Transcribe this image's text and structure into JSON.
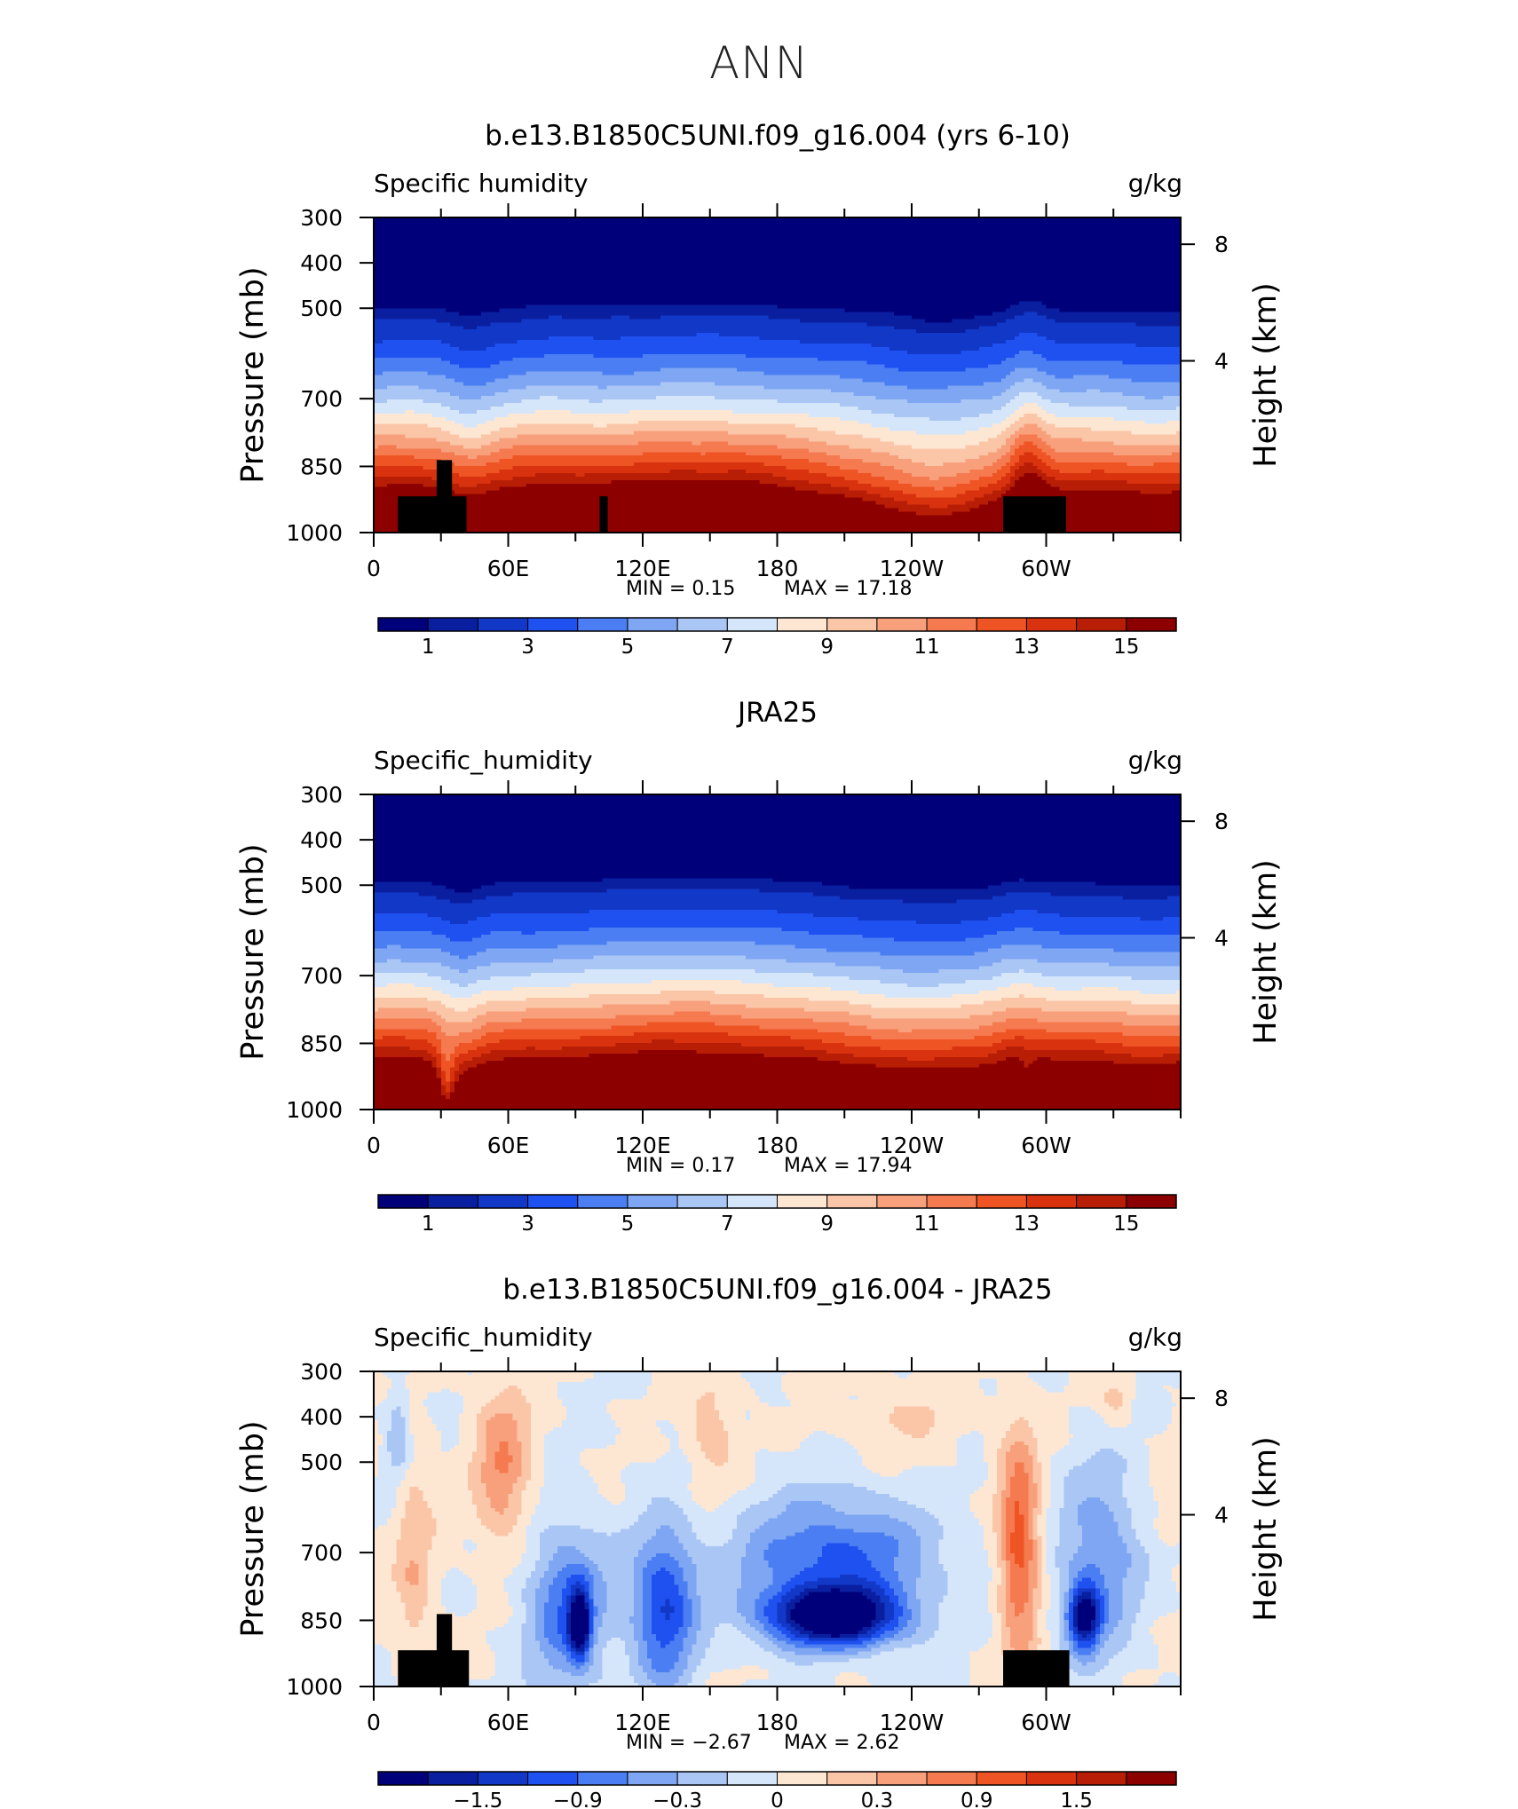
{
  "page_title": "ANN",
  "chart_data": [
    {
      "type": "heatmap",
      "title": "b.e13.B1850C5UNI.f09_g16.004 (yrs 6-10)",
      "variable": "Specific humidity",
      "units": "g/kg",
      "ylabel": "Pressure (mb)",
      "ylabel_right": "Height (km)",
      "y_ticks": [
        "300",
        "400",
        "500",
        "700",
        "850",
        "1000"
      ],
      "y_right_ticks": [
        "8",
        "4"
      ],
      "x_ticks": [
        "0",
        "60E",
        "120E",
        "180",
        "120W",
        "60W"
      ],
      "min_text": "MIN =    0.15",
      "max_text": "MAX =    17.18",
      "colorbar_labels": [
        "1",
        "3",
        "5",
        "7",
        "9",
        "11",
        "13",
        "15"
      ],
      "colorbar_colors": [
        "#00007a",
        "#0a1fa0",
        "#1238c8",
        "#1f50f0",
        "#4a7ef2",
        "#7ea6f2",
        "#aac6f5",
        "#d6e6fa",
        "#fde7d3",
        "#fbc6a8",
        "#f8a07c",
        "#f57a50",
        "#ee5424",
        "#d8330e",
        "#b81e06",
        "#8c0000"
      ],
      "cross_section": {
        "levels": [
          0.5,
          1,
          2,
          3,
          4,
          5,
          6,
          7,
          8,
          9,
          10,
          11,
          12,
          13,
          14,
          15
        ],
        "mask": [
          [
            0.03,
            0.115,
            0.885
          ],
          [
            0.078,
            0.097,
            0.77
          ],
          [
            0.28,
            0.29,
            0.885
          ],
          [
            0.78,
            0.858,
            0.885
          ]
        ]
      }
    },
    {
      "type": "heatmap",
      "title": "JRA25",
      "variable": "Specific_humidity",
      "units": "g/kg",
      "ylabel": "Pressure (mb)",
      "ylabel_right": "Height (km)",
      "y_ticks": [
        "300",
        "400",
        "500",
        "700",
        "850",
        "1000"
      ],
      "y_right_ticks": [
        "8",
        "4"
      ],
      "x_ticks": [
        "0",
        "60E",
        "120E",
        "180",
        "120W",
        "60W"
      ],
      "min_text": "MIN =    0.17",
      "max_text": "MAX =    17.94",
      "colorbar_labels": [
        "1",
        "3",
        "5",
        "7",
        "9",
        "11",
        "13",
        "15"
      ],
      "colorbar_colors": [
        "#00007a",
        "#0a1fa0",
        "#1238c8",
        "#1f50f0",
        "#4a7ef2",
        "#7ea6f2",
        "#aac6f5",
        "#d6e6fa",
        "#fde7d3",
        "#fbc6a8",
        "#f8a07c",
        "#f57a50",
        "#ee5424",
        "#d8330e",
        "#b81e06",
        "#8c0000"
      ],
      "cross_section": {
        "levels": [
          0.5,
          1,
          2,
          3,
          4,
          5,
          6,
          7,
          8,
          9,
          10,
          11,
          12,
          13,
          14,
          15
        ],
        "mask": []
      }
    },
    {
      "type": "heatmap",
      "title": "b.e13.B1850C5UNI.f09_g16.004 - JRA25",
      "variable": "Specific_humidity",
      "units": "g/kg",
      "ylabel": "Pressure (mb)",
      "ylabel_right": "Height (km)",
      "y_ticks": [
        "300",
        "400",
        "500",
        "700",
        "850",
        "1000"
      ],
      "y_right_ticks": [
        "8",
        "4"
      ],
      "x_ticks": [
        "0",
        "60E",
        "120E",
        "180",
        "120W",
        "60W"
      ],
      "min_text": "MIN =   −2.67",
      "max_text": "MAX =    2.62",
      "colorbar_labels": [
        "−1.5",
        "−0.9",
        "−0.3",
        "0",
        "0.3",
        "0.9",
        "1.5"
      ],
      "colorbar_colors": [
        "#00007a",
        "#0a1fa0",
        "#1238c8",
        "#1f50f0",
        "#4a7ef2",
        "#7ea6f2",
        "#aac6f5",
        "#d6e6fa",
        "#fde7d3",
        "#fbc6a8",
        "#f8a07c",
        "#f57a50",
        "#ee5424",
        "#d8330e",
        "#b81e06",
        "#8c0000"
      ],
      "cross_section": {
        "levels": [
          -2.1,
          -1.8,
          -1.5,
          -1.2,
          -0.9,
          -0.6,
          -0.3,
          0,
          0.3,
          0.6,
          0.9,
          1.2,
          1.5,
          1.8,
          2.1
        ],
        "mask": [
          [
            0.03,
            0.118,
            0.885
          ],
          [
            0.078,
            0.097,
            0.77
          ],
          [
            0.78,
            0.862,
            0.885
          ]
        ]
      }
    }
  ]
}
